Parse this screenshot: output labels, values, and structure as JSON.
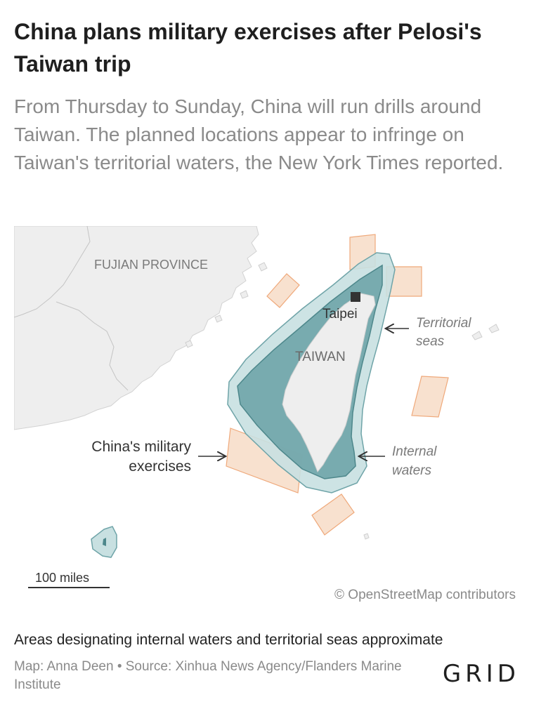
{
  "header": {
    "title": "China plans military exercises after Pelosi's Taiwan trip",
    "subtitle": "From Thursday to Sunday, China will run drills around Taiwan. The planned locations appear to infringe on Taiwan's territorial waters, the New York Times reported."
  },
  "map": {
    "labels": {
      "province": "FUJIAN PROVINCE",
      "island": "TAIWAN",
      "capital": "Taipei"
    },
    "annotations": {
      "territorial_line1": "Territorial",
      "territorial_line2": "seas",
      "internal_line1": "Internal",
      "internal_line2": "waters",
      "exercises_line1": "China's military",
      "exercises_line2": "exercises"
    },
    "scale_label": "100 miles",
    "attribution": "© OpenStreetMap contributors",
    "colors": {
      "land": "#eeeeee",
      "water": "#ffffff",
      "territorial_fill": "#c8e0e1",
      "internal_fill": "#6fa4a8",
      "exercise_fill": "#f7dcc7",
      "exercise_stroke": "#efa97b"
    }
  },
  "footer": {
    "note": "Areas designating internal waters and territorial seas approximate",
    "credit": "Map: Anna Deen • Source: Xinhua News Agency/Flanders Marine Institute",
    "logo": "GRID"
  }
}
